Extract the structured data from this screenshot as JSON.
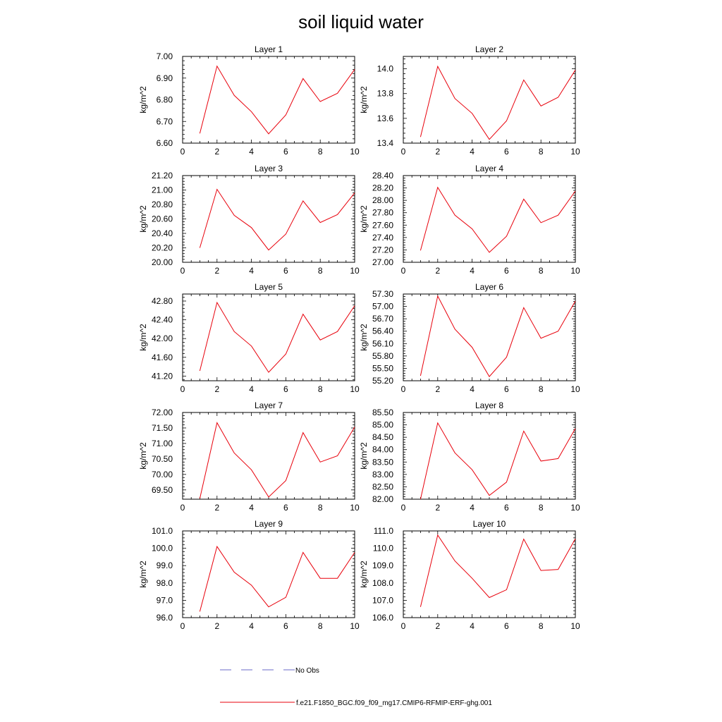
{
  "title": "soil liquid water",
  "colors": {
    "model_line": "#e8000b",
    "obs_line": "#6a6ac8",
    "axis": "#000000"
  },
  "legend": {
    "obs_label": "No Obs",
    "model_label": "f.e21.F1850_BGC.f09_f09_mg17.CMIP6-RFMIP-ERF-ghg.001"
  },
  "chart_data": [
    {
      "type": "line",
      "title": "Layer 1",
      "ylabel": "kg/m^2",
      "xlim": [
        0,
        10
      ],
      "xticks": [
        "0",
        "2",
        "4",
        "6",
        "8",
        "10"
      ],
      "ylim": [
        6.6,
        7.0
      ],
      "yticks": [
        "6.60",
        "6.70",
        "6.80",
        "6.90",
        "7.00"
      ],
      "x": [
        1,
        2,
        3,
        4,
        5,
        6,
        7,
        8,
        9,
        10
      ],
      "series": [
        {
          "values": [
            6.645,
            6.955,
            6.82,
            6.745,
            6.643,
            6.73,
            6.898,
            6.792,
            6.83,
            6.94
          ]
        }
      ]
    },
    {
      "type": "line",
      "title": "Layer 2",
      "ylabel": "kg/m^2",
      "xlim": [
        0,
        10
      ],
      "xticks": [
        "0",
        "2",
        "4",
        "6",
        "8",
        "10"
      ],
      "ylim": [
        13.4,
        14.1
      ],
      "yticks": [
        "13.4",
        "13.6",
        "13.8",
        "14.0"
      ],
      "x": [
        1,
        2,
        3,
        4,
        5,
        6,
        7,
        8,
        9,
        10
      ],
      "series": [
        {
          "values": [
            13.45,
            14.02,
            13.76,
            13.64,
            13.43,
            13.58,
            13.91,
            13.7,
            13.77,
            13.99
          ]
        }
      ]
    },
    {
      "type": "line",
      "title": "Layer 3",
      "ylabel": "kg/m^2",
      "xlim": [
        0,
        10
      ],
      "xticks": [
        "0",
        "2",
        "4",
        "6",
        "8",
        "10"
      ],
      "ylim": [
        20.0,
        21.2
      ],
      "yticks": [
        "20.00",
        "20.20",
        "20.40",
        "20.60",
        "20.80",
        "21.00",
        "21.20"
      ],
      "x": [
        1,
        2,
        3,
        4,
        5,
        6,
        7,
        8,
        9,
        10
      ],
      "series": [
        {
          "values": [
            20.2,
            21.01,
            20.65,
            20.48,
            20.17,
            20.39,
            20.85,
            20.55,
            20.66,
            20.96
          ]
        }
      ]
    },
    {
      "type": "line",
      "title": "Layer 4",
      "ylabel": "kg/m^2",
      "xlim": [
        0,
        10
      ],
      "xticks": [
        "0",
        "2",
        "4",
        "6",
        "8",
        "10"
      ],
      "ylim": [
        27.0,
        28.4
      ],
      "yticks": [
        "27.00",
        "27.20",
        "27.40",
        "27.60",
        "27.80",
        "28.00",
        "28.20",
        "28.40"
      ],
      "x": [
        1,
        2,
        3,
        4,
        5,
        6,
        7,
        8,
        9,
        10
      ],
      "series": [
        {
          "values": [
            27.19,
            28.21,
            27.76,
            27.54,
            27.16,
            27.42,
            28.02,
            27.64,
            27.76,
            28.15
          ]
        }
      ]
    },
    {
      "type": "line",
      "title": "Layer 5",
      "ylabel": "kg/m^2",
      "xlim": [
        0,
        10
      ],
      "xticks": [
        "0",
        "2",
        "4",
        "6",
        "8",
        "10"
      ],
      "ylim": [
        41.1,
        42.95
      ],
      "yticks": [
        "41.20",
        "41.60",
        "42.00",
        "42.40",
        "42.80"
      ],
      "x": [
        1,
        2,
        3,
        4,
        5,
        6,
        7,
        8,
        9,
        10
      ],
      "series": [
        {
          "values": [
            41.31,
            42.77,
            42.15,
            41.84,
            41.28,
            41.67,
            42.52,
            41.97,
            42.15,
            42.7
          ]
        }
      ]
    },
    {
      "type": "line",
      "title": "Layer 6",
      "ylabel": "kg/m^2",
      "xlim": [
        0,
        10
      ],
      "xticks": [
        "0",
        "2",
        "4",
        "6",
        "8",
        "10"
      ],
      "ylim": [
        55.2,
        57.3
      ],
      "yticks": [
        "55.20",
        "55.50",
        "55.80",
        "56.10",
        "56.40",
        "56.70",
        "57.00",
        "57.30"
      ],
      "x": [
        1,
        2,
        3,
        4,
        5,
        6,
        7,
        8,
        9,
        10
      ],
      "series": [
        {
          "values": [
            55.32,
            57.25,
            56.45,
            56.01,
            55.3,
            55.77,
            56.97,
            56.23,
            56.4,
            57.13
          ]
        }
      ]
    },
    {
      "type": "line",
      "title": "Layer 7",
      "ylabel": "kg/m^2",
      "xlim": [
        0,
        10
      ],
      "xticks": [
        "0",
        "2",
        "4",
        "6",
        "8",
        "10"
      ],
      "ylim": [
        69.2,
        72.0
      ],
      "yticks": [
        "69.50",
        "70.00",
        "70.50",
        "71.00",
        "71.50",
        "72.00"
      ],
      "x": [
        1,
        2,
        3,
        4,
        5,
        6,
        7,
        8,
        9,
        10
      ],
      "series": [
        {
          "values": [
            69.22,
            71.67,
            70.69,
            70.15,
            69.27,
            69.8,
            71.35,
            70.4,
            70.6,
            71.53
          ]
        }
      ]
    },
    {
      "type": "line",
      "title": "Layer 8",
      "ylabel": "kg/m^2",
      "xlim": [
        0,
        10
      ],
      "xticks": [
        "0",
        "2",
        "4",
        "6",
        "8",
        "10"
      ],
      "ylim": [
        82.0,
        85.5
      ],
      "yticks": [
        "82.00",
        "82.50",
        "83.00",
        "83.50",
        "84.00",
        "84.50",
        "85.00",
        "85.50"
      ],
      "x": [
        1,
        2,
        3,
        4,
        5,
        6,
        7,
        8,
        9,
        10
      ],
      "series": [
        {
          "values": [
            82.0,
            85.08,
            83.87,
            83.19,
            82.15,
            82.69,
            84.75,
            83.54,
            83.64,
            84.85
          ]
        }
      ]
    },
    {
      "type": "line",
      "title": "Layer 9",
      "ylabel": "kg/m^2",
      "xlim": [
        0,
        10
      ],
      "xticks": [
        "0",
        "2",
        "4",
        "6",
        "8",
        "10"
      ],
      "ylim": [
        96.0,
        101.0
      ],
      "yticks": [
        "96.0",
        "97.0",
        "98.0",
        "99.0",
        "100.0",
        "101.0"
      ],
      "x": [
        1,
        2,
        3,
        4,
        5,
        6,
        7,
        8,
        9,
        10
      ],
      "series": [
        {
          "values": [
            96.35,
            100.1,
            98.62,
            97.87,
            96.62,
            97.17,
            99.76,
            98.27,
            98.27,
            99.76
          ]
        }
      ]
    },
    {
      "type": "line",
      "title": "Layer 10",
      "ylabel": "kg/m^2",
      "xlim": [
        0,
        10
      ],
      "xticks": [
        "0",
        "2",
        "4",
        "6",
        "8",
        "10"
      ],
      "ylim": [
        106.0,
        111.0
      ],
      "yticks": [
        "106.0",
        "107.0",
        "108.0",
        "109.0",
        "110.0",
        "111.0"
      ],
      "x": [
        1,
        2,
        3,
        4,
        5,
        6,
        7,
        8,
        9,
        10
      ],
      "series": [
        {
          "values": [
            106.62,
            110.76,
            109.27,
            108.27,
            107.16,
            107.61,
            110.53,
            108.72,
            108.78,
            110.55
          ]
        }
      ]
    }
  ]
}
